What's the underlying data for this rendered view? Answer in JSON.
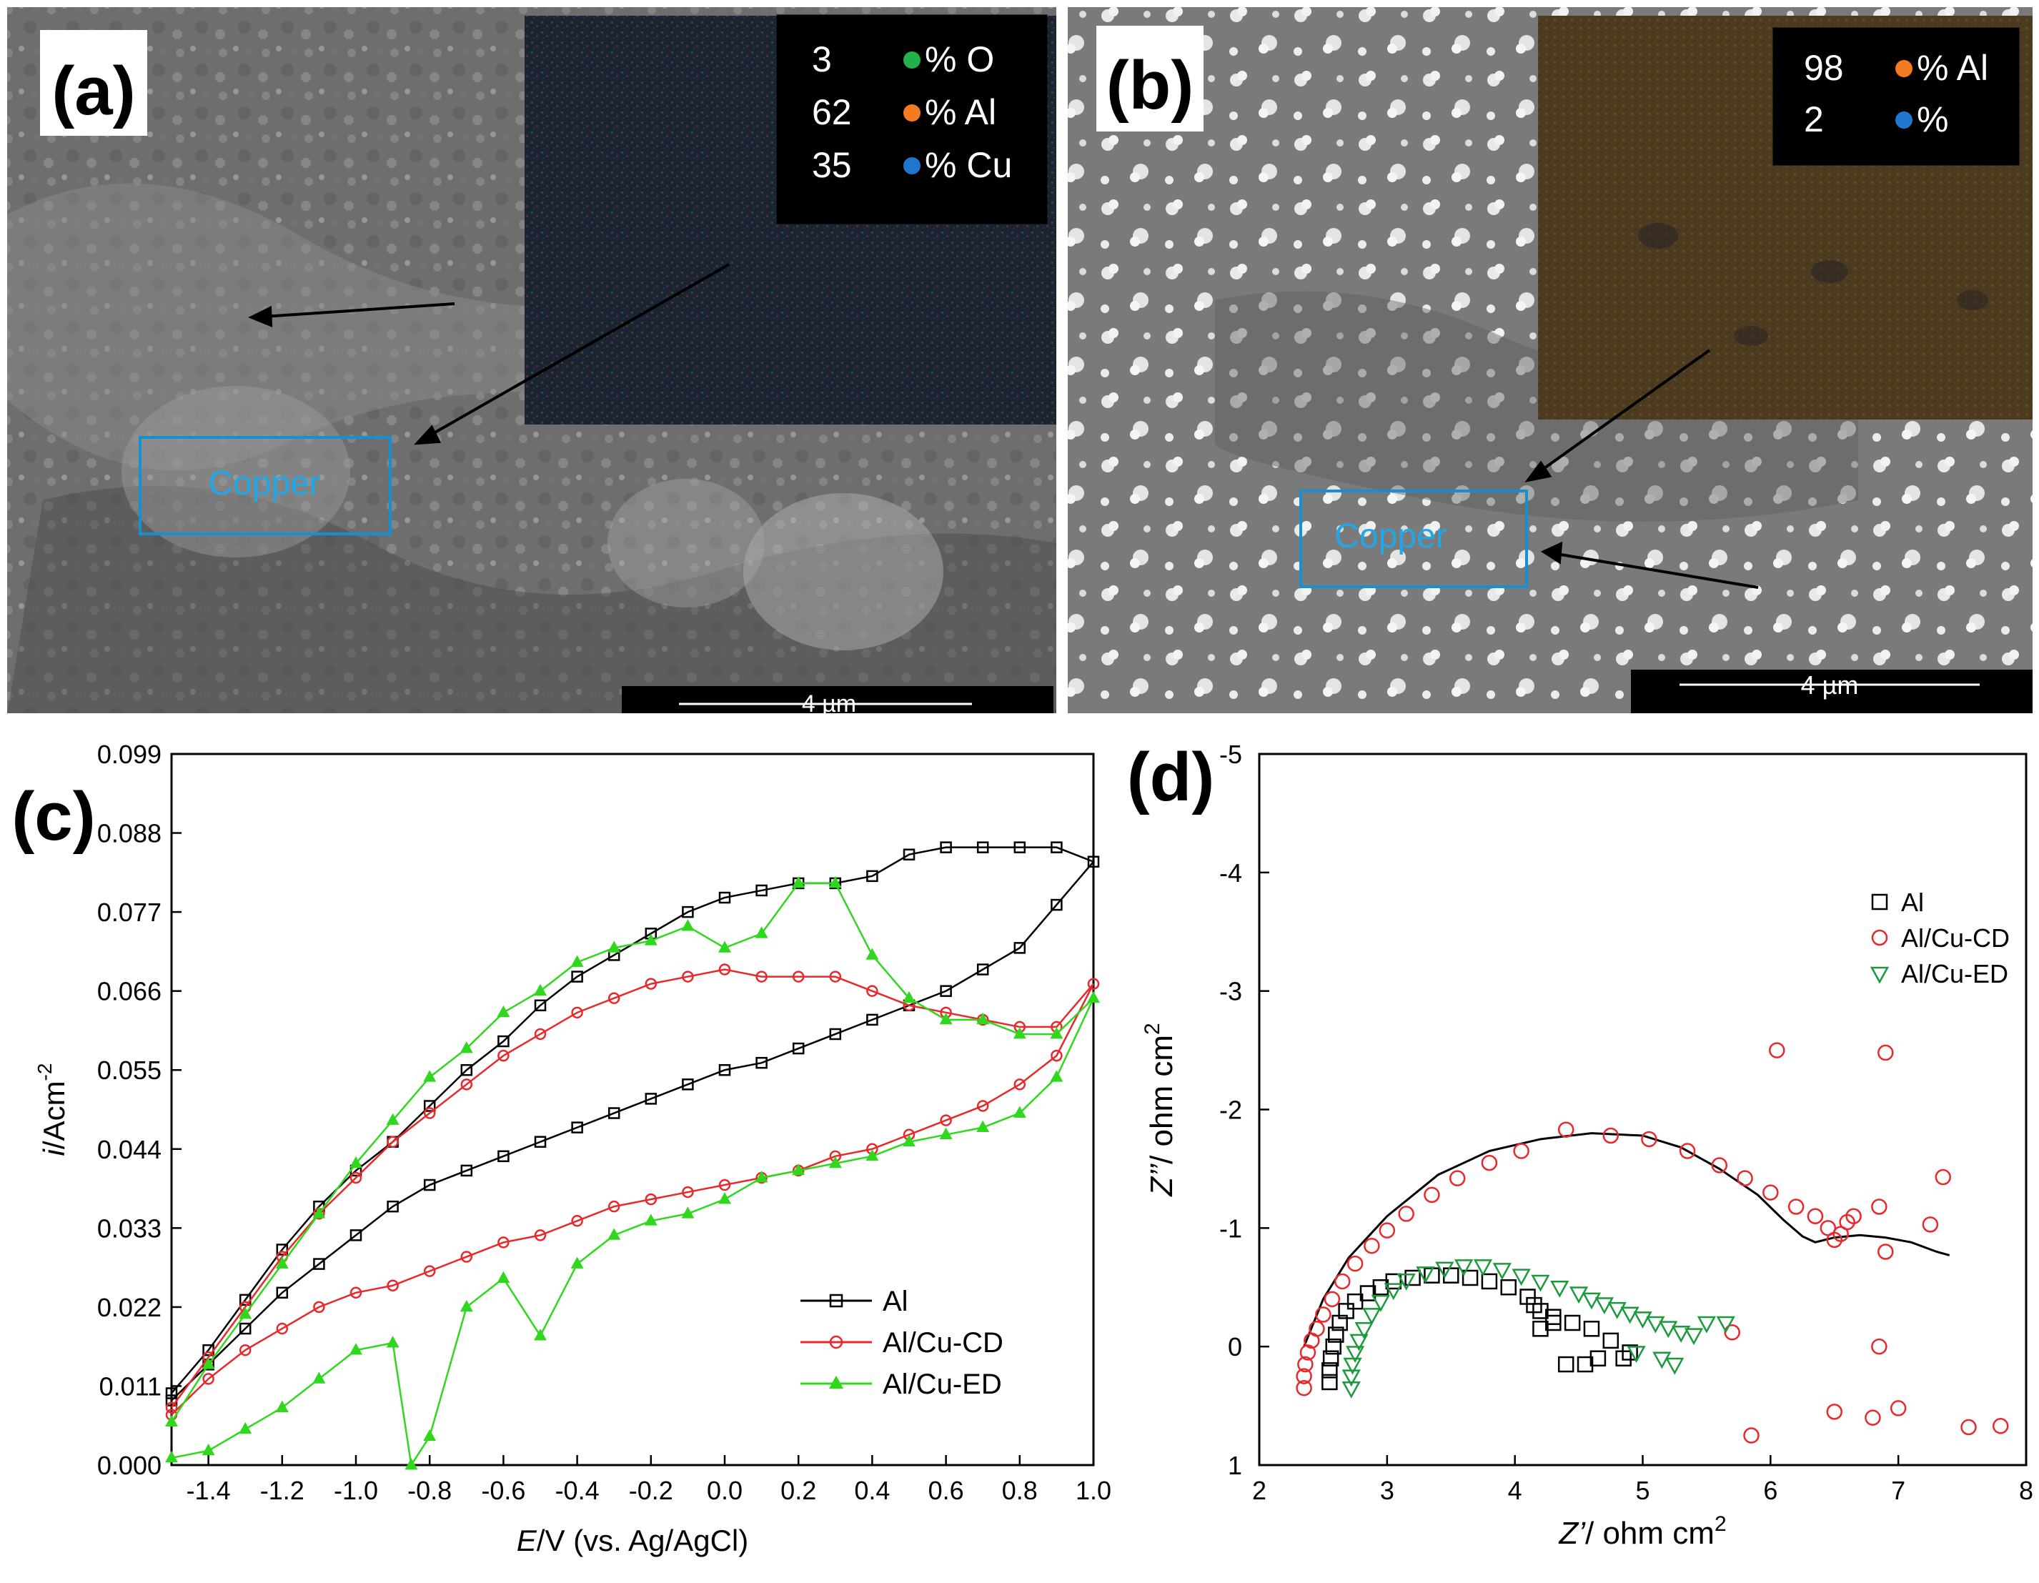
{
  "panels": {
    "a": {
      "label": "(a)",
      "inset_legend": [
        {
          "value": "3",
          "unit": "% O",
          "color": "#22b04a"
        },
        {
          "value": "62",
          "unit": "% Al",
          "color": "#f47b20"
        },
        {
          "value": "35",
          "unit": "% Cu",
          "color": "#1f77d0"
        }
      ],
      "box_label": "Copper",
      "scale_bar": "4 µm"
    },
    "b": {
      "label": "(b)",
      "inset_legend": [
        {
          "value": "98",
          "unit": "% Al",
          "color": "#f47b20"
        },
        {
          "value": "2",
          "unit": "%",
          "color": "#1f77d0"
        }
      ],
      "box_label": "Copper",
      "scale_bar": "4 µm"
    },
    "c": {
      "label": "(c)"
    },
    "d": {
      "label": "(d)"
    }
  },
  "chart_data": [
    {
      "panel": "c",
      "type": "line",
      "xlabel_italic": "E",
      "xlabel_rest": "/V (vs. Ag/AgCl)",
      "ylabel_italic": "i",
      "ylabel_rest": "/Acm",
      "ylabel_sup": "-2",
      "xlim": [
        -1.5,
        1.0
      ],
      "ylim": [
        0.0,
        0.099
      ],
      "xticks": [
        "-1.4",
        "-1.2",
        "-1.0",
        "-0.8",
        "-0.6",
        "-0.4",
        "-0.2",
        "0.0",
        "0.2",
        "0.4",
        "0.6",
        "0.8",
        "1.0"
      ],
      "yticks": [
        "0.000",
        "0.011",
        "0.022",
        "0.033",
        "0.044",
        "0.055",
        "0.066",
        "0.077",
        "0.088",
        "0.099"
      ],
      "legend_position": "bottom-right",
      "series": [
        {
          "name": "Al",
          "color": "#000000",
          "marker": "square",
          "x": [
            -1.5,
            -1.4,
            -1.3,
            -1.2,
            -1.1,
            -1.0,
            -0.9,
            -0.8,
            -0.7,
            -0.6,
            -0.5,
            -0.4,
            -0.3,
            -0.2,
            -0.1,
            0.0,
            0.1,
            0.2,
            0.3,
            0.4,
            0.5,
            0.6,
            0.7,
            0.8,
            0.9,
            1.0,
            0.9,
            0.8,
            0.7,
            0.6,
            0.5,
            0.4,
            0.3,
            0.2,
            0.1,
            0.0,
            -0.1,
            -0.2,
            -0.3,
            -0.4,
            -0.5,
            -0.6,
            -0.7,
            -0.8,
            -0.9,
            -1.0,
            -1.1,
            -1.2,
            -1.3,
            -1.4,
            -1.5
          ],
          "y": [
            0.01,
            0.016,
            0.023,
            0.03,
            0.036,
            0.041,
            0.045,
            0.05,
            0.055,
            0.059,
            0.064,
            0.068,
            0.071,
            0.074,
            0.077,
            0.079,
            0.08,
            0.081,
            0.081,
            0.082,
            0.085,
            0.086,
            0.086,
            0.086,
            0.086,
            0.084,
            0.078,
            0.072,
            0.069,
            0.066,
            0.064,
            0.062,
            0.06,
            0.058,
            0.056,
            0.055,
            0.053,
            0.051,
            0.049,
            0.047,
            0.045,
            0.043,
            0.041,
            0.039,
            0.036,
            0.032,
            0.028,
            0.024,
            0.019,
            0.014,
            0.009
          ]
        },
        {
          "name": "Al/Cu-CD",
          "color": "#e8282a",
          "marker": "circle",
          "x": [
            -1.5,
            -1.4,
            -1.3,
            -1.2,
            -1.1,
            -1.0,
            -0.9,
            -0.8,
            -0.7,
            -0.6,
            -0.5,
            -0.4,
            -0.3,
            -0.2,
            -0.1,
            0.0,
            0.1,
            0.2,
            0.3,
            0.4,
            0.5,
            0.6,
            0.7,
            0.8,
            0.9,
            1.0,
            0.9,
            0.8,
            0.7,
            0.6,
            0.5,
            0.4,
            0.3,
            0.2,
            0.1,
            0.0,
            -0.1,
            -0.2,
            -0.3,
            -0.4,
            -0.5,
            -0.6,
            -0.7,
            -0.8,
            -0.9,
            -1.0,
            -1.1,
            -1.2,
            -1.3,
            -1.4,
            -1.5
          ],
          "y": [
            0.008,
            0.015,
            0.022,
            0.029,
            0.035,
            0.04,
            0.045,
            0.049,
            0.053,
            0.057,
            0.06,
            0.063,
            0.065,
            0.067,
            0.068,
            0.069,
            0.068,
            0.068,
            0.068,
            0.066,
            0.064,
            0.063,
            0.062,
            0.061,
            0.061,
            0.067,
            0.057,
            0.053,
            0.05,
            0.048,
            0.046,
            0.044,
            0.043,
            0.041,
            0.04,
            0.039,
            0.038,
            0.037,
            0.036,
            0.034,
            0.032,
            0.031,
            0.029,
            0.027,
            0.025,
            0.024,
            0.022,
            0.019,
            0.016,
            0.012,
            0.007
          ]
        },
        {
          "name": "Al/Cu-ED",
          "color": "#2fd81c",
          "marker": "triangle",
          "x": [
            -1.5,
            -1.4,
            -1.3,
            -1.2,
            -1.1,
            -1.0,
            -0.9,
            -0.8,
            -0.7,
            -0.6,
            -0.5,
            -0.4,
            -0.3,
            -0.2,
            -0.1,
            0.0,
            0.1,
            0.2,
            0.3,
            0.4,
            0.5,
            0.6,
            0.7,
            0.8,
            0.9,
            1.0,
            0.9,
            0.8,
            0.7,
            0.6,
            0.5,
            0.4,
            0.3,
            0.2,
            0.1,
            0.0,
            -0.1,
            -0.2,
            -0.3,
            -0.4,
            -0.5,
            -0.6,
            -0.7,
            -0.8,
            -0.85,
            -0.9,
            -1.0,
            -1.1,
            -1.2,
            -1.3,
            -1.4,
            -1.5
          ],
          "y": [
            0.006,
            0.014,
            0.021,
            0.028,
            0.035,
            0.042,
            0.048,
            0.054,
            0.058,
            0.063,
            0.066,
            0.07,
            0.072,
            0.073,
            0.075,
            0.072,
            0.074,
            0.081,
            0.081,
            0.071,
            0.065,
            0.062,
            0.062,
            0.06,
            0.06,
            0.065,
            0.054,
            0.049,
            0.047,
            0.046,
            0.045,
            0.043,
            0.042,
            0.041,
            0.04,
            0.037,
            0.035,
            0.034,
            0.032,
            0.028,
            0.018,
            0.026,
            0.022,
            0.004,
            0.0,
            0.017,
            0.016,
            0.012,
            0.008,
            0.005,
            0.002,
            0.001
          ]
        }
      ]
    },
    {
      "panel": "d",
      "type": "scatter",
      "xlabel_italic": "Z’",
      "xlabel_rest": "/ ohm cm",
      "xlabel_sup": "2",
      "ylabel_italic": "Z’’",
      "ylabel_rest": "/ ohm cm",
      "ylabel_sup": "2",
      "xlim": [
        2,
        8
      ],
      "ylim": [
        1,
        -5
      ],
      "y_axis_inverted": true,
      "xticks": [
        "2",
        "3",
        "4",
        "5",
        "6",
        "7",
        "8"
      ],
      "yticks": [
        "1",
        "0",
        "-1",
        "-2",
        "-3",
        "-4",
        "-5"
      ],
      "legend_position": "top-right",
      "fit_curve": {
        "color": "#000000",
        "x": [
          2.35,
          2.5,
          2.7,
          3.0,
          3.4,
          3.8,
          4.2,
          4.6,
          5.0,
          5.3,
          5.6,
          5.9,
          6.1,
          6.25,
          6.35,
          6.5,
          6.7,
          6.9,
          7.1,
          7.3,
          7.4
        ],
        "y": [
          0.0,
          -0.4,
          -0.75,
          -1.1,
          -1.45,
          -1.65,
          -1.75,
          -1.8,
          -1.78,
          -1.68,
          -1.5,
          -1.28,
          -1.07,
          -0.93,
          -0.88,
          -0.92,
          -0.94,
          -0.92,
          -0.88,
          -0.8,
          -0.77
        ]
      },
      "series": [
        {
          "name": "Al",
          "color": "#000000",
          "marker": "square",
          "x": [
            2.55,
            2.55,
            2.56,
            2.58,
            2.6,
            2.63,
            2.68,
            2.75,
            2.85,
            2.95,
            3.05,
            3.2,
            3.35,
            3.5,
            3.65,
            3.8,
            3.95,
            4.1,
            4.15,
            4.2,
            4.3,
            4.45,
            4.6,
            4.75,
            4.85,
            4.4,
            4.55,
            4.65,
            4.9,
            4.2,
            4.3
          ],
          "y": [
            0.3,
            0.2,
            0.1,
            0.0,
            -0.1,
            -0.2,
            -0.3,
            -0.38,
            -0.45,
            -0.5,
            -0.55,
            -0.58,
            -0.6,
            -0.6,
            -0.58,
            -0.55,
            -0.5,
            -0.42,
            -0.35,
            -0.3,
            -0.25,
            -0.2,
            -0.15,
            -0.05,
            0.1,
            0.15,
            0.15,
            0.1,
            0.05,
            -0.15,
            -0.2
          ]
        },
        {
          "name": "Al/Cu-CD",
          "color": "#e8282a",
          "marker": "circle",
          "x": [
            2.35,
            2.35,
            2.36,
            2.38,
            2.41,
            2.45,
            2.5,
            2.57,
            2.65,
            2.75,
            2.88,
            3.0,
            3.15,
            3.35,
            3.55,
            3.8,
            4.05,
            4.4,
            4.75,
            5.05,
            5.35,
            5.6,
            5.8,
            6.0,
            6.2,
            6.35,
            6.45,
            6.5,
            6.55,
            6.6,
            6.65,
            6.85,
            6.9,
            7.25,
            7.35,
            6.05,
            6.9,
            6.5,
            6.8,
            6.85,
            7.0,
            7.55,
            7.8,
            5.85,
            5.7
          ],
          "y": [
            0.35,
            0.25,
            0.15,
            0.05,
            -0.05,
            -0.15,
            -0.27,
            -0.4,
            -0.55,
            -0.7,
            -0.85,
            -0.98,
            -1.12,
            -1.28,
            -1.42,
            -1.55,
            -1.65,
            -1.83,
            -1.78,
            -1.75,
            -1.65,
            -1.53,
            -1.42,
            -1.3,
            -1.18,
            -1.1,
            -1.0,
            -0.9,
            -0.95,
            -1.05,
            -1.1,
            -1.18,
            -0.8,
            -1.03,
            -1.43,
            -2.5,
            -2.48,
            0.55,
            0.6,
            0.0,
            0.52,
            0.68,
            0.67,
            0.75,
            -0.12
          ]
        },
        {
          "name": "Al/Cu-ED",
          "color": "#1a9a3a",
          "marker": "triangle-down",
          "x": [
            2.72,
            2.72,
            2.73,
            2.75,
            2.78,
            2.82,
            2.88,
            2.95,
            3.05,
            3.15,
            3.3,
            3.45,
            3.6,
            3.75,
            3.9,
            4.05,
            4.2,
            4.35,
            4.5,
            4.6,
            4.7,
            4.8,
            4.9,
            5.0,
            5.1,
            5.2,
            5.3,
            5.4,
            5.5,
            5.65,
            4.95,
            5.15,
            5.25
          ],
          "y": [
            0.35,
            0.25,
            0.15,
            0.05,
            -0.05,
            -0.15,
            -0.27,
            -0.38,
            -0.48,
            -0.56,
            -0.62,
            -0.66,
            -0.68,
            -0.68,
            -0.65,
            -0.6,
            -0.55,
            -0.5,
            -0.45,
            -0.4,
            -0.36,
            -0.32,
            -0.28,
            -0.24,
            -0.2,
            -0.16,
            -0.12,
            -0.1,
            -0.2,
            -0.2,
            0.05,
            0.1,
            0.15
          ]
        }
      ]
    }
  ]
}
